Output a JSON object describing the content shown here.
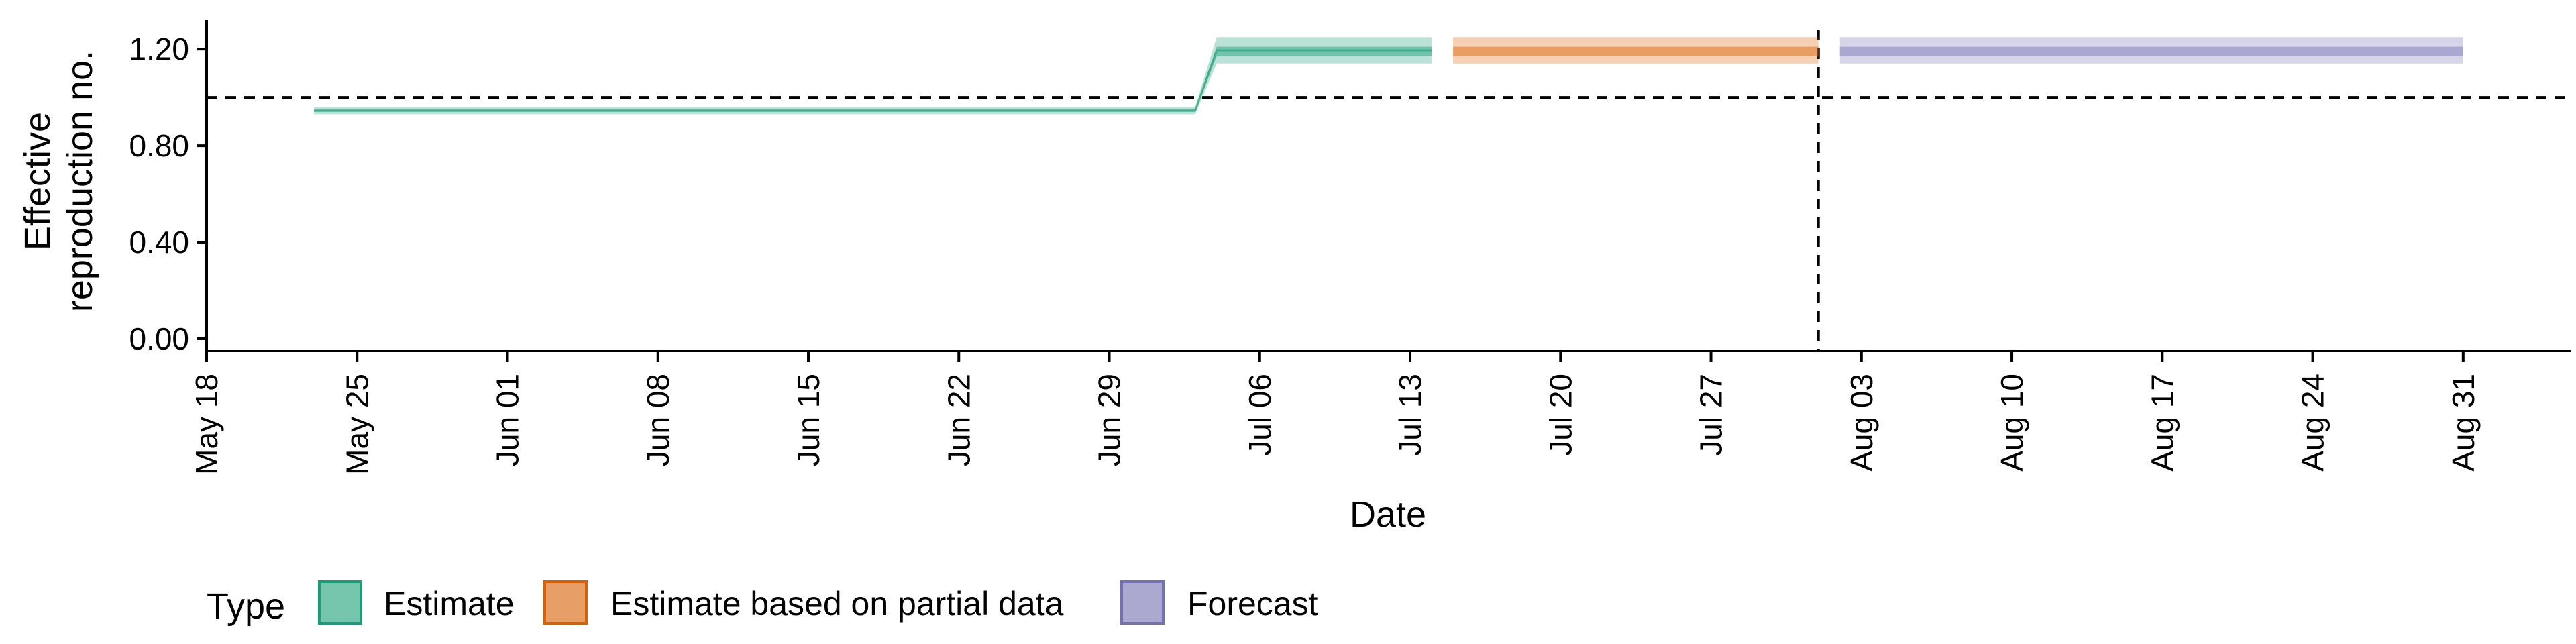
{
  "chart_data": {
    "type": "area",
    "xlabel": "Date",
    "ylabel_lines": [
      "Effective",
      "reproduction no."
    ],
    "x_ticks": [
      "May 18",
      "May 25",
      "Jun 01",
      "Jun 08",
      "Jun 15",
      "Jun 22",
      "Jun 29",
      "Jul 06",
      "Jul 13",
      "Jul 20",
      "Jul 27",
      "Aug 03",
      "Aug 10",
      "Aug 17",
      "Aug 24",
      "Aug 31"
    ],
    "x_tick_dates": [
      "2020-05-18",
      "2020-05-25",
      "2020-06-01",
      "2020-06-08",
      "2020-06-15",
      "2020-06-22",
      "2020-06-29",
      "2020-07-06",
      "2020-07-13",
      "2020-07-20",
      "2020-07-27",
      "2020-08-03",
      "2020-08-10",
      "2020-08-17",
      "2020-08-24",
      "2020-08-31"
    ],
    "xlim": [
      "2020-05-18",
      "2020-09-05"
    ],
    "ylim": [
      -0.05,
      1.32
    ],
    "y_ticks": [
      "0.00",
      "0.40",
      "0.80",
      "1.20"
    ],
    "y_tick_values": [
      0,
      0.4,
      0.8,
      1.2
    ],
    "reference_line_y": 1.0,
    "forecast_date": "2020-08-01",
    "series": [
      {
        "name": "Estimate",
        "fill": "#1b9e77",
        "stroke": "#1b9e77",
        "points": [
          {
            "x": "2020-05-23",
            "lo90": 0.93,
            "hi90": 0.96,
            "lo50": 0.94,
            "hi50": 0.95
          },
          {
            "x": "2020-07-03",
            "lo90": 0.93,
            "hi90": 0.96,
            "lo50": 0.94,
            "hi50": 0.95
          },
          {
            "x": "2020-07-04",
            "lo90": 1.14,
            "hi90": 1.25,
            "lo50": 1.17,
            "hi50": 1.21
          },
          {
            "x": "2020-07-14",
            "lo90": 1.14,
            "hi90": 1.25,
            "lo50": 1.17,
            "hi50": 1.21
          }
        ]
      },
      {
        "name": "Estimate based on partial data",
        "fill": "#d95f02",
        "stroke": "#d95f02",
        "points": [
          {
            "x": "2020-07-15",
            "lo90": 1.14,
            "hi90": 1.25,
            "lo50": 1.17,
            "hi50": 1.21
          },
          {
            "x": "2020-08-01",
            "lo90": 1.14,
            "hi90": 1.25,
            "lo50": 1.17,
            "hi50": 1.21
          }
        ]
      },
      {
        "name": "Forecast",
        "fill": "#7570b3",
        "stroke": "#7570b3",
        "points": [
          {
            "x": "2020-08-02",
            "lo90": 1.14,
            "hi90": 1.25,
            "lo50": 1.17,
            "hi50": 1.21
          },
          {
            "x": "2020-08-31",
            "lo90": 1.14,
            "hi90": 1.25,
            "lo50": 1.17,
            "hi50": 1.21
          }
        ]
      }
    ],
    "legend": {
      "title": "Type",
      "placement": "bottom-left",
      "entries": [
        "Estimate",
        "Estimate based on partial data",
        "Forecast"
      ]
    }
  }
}
